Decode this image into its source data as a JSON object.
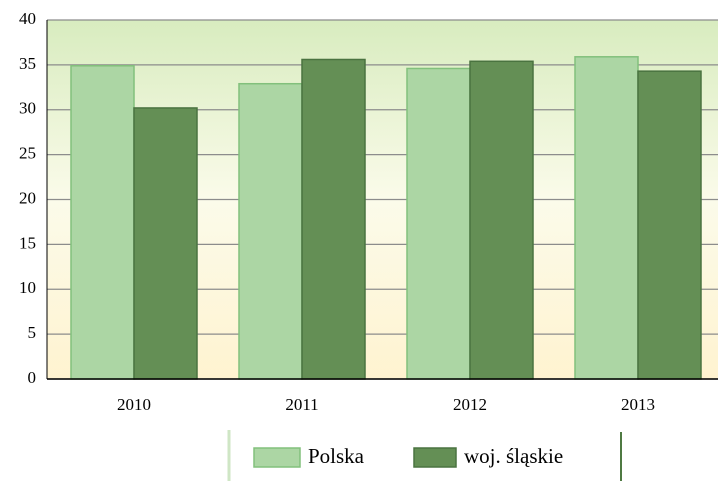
{
  "chart_data": {
    "type": "bar",
    "categories": [
      "2010",
      "2011",
      "2012",
      "2013"
    ],
    "series": [
      {
        "name": "Polska",
        "color": "#acd6a4",
        "values": [
          34.9,
          32.9,
          34.6,
          35.9
        ]
      },
      {
        "name": "woj. śląskie",
        "color": "#648f55",
        "values": [
          30.2,
          35.6,
          35.4,
          34.3
        ]
      }
    ],
    "ylim": [
      0,
      40
    ],
    "yticks": [
      0,
      5,
      10,
      15,
      20,
      25,
      30,
      35,
      40
    ],
    "grid": true,
    "legend": "bottom"
  }
}
